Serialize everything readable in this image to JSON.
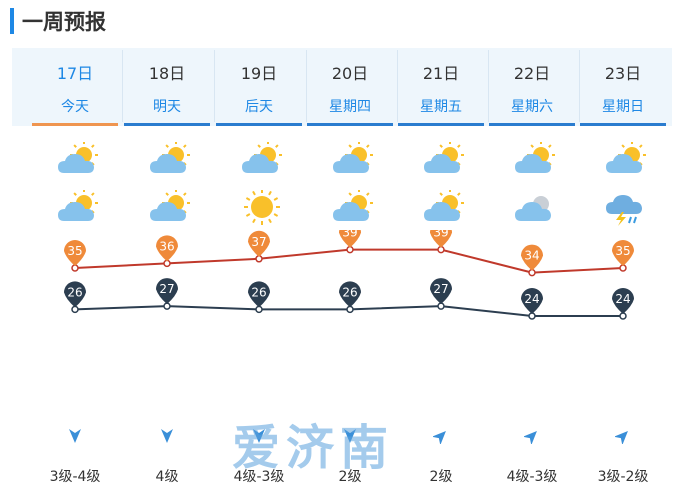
{
  "page": {
    "title": "一周预报"
  },
  "days": [
    {
      "date": "17日",
      "label": "今天",
      "icon_day": "partly-cloudy-icon",
      "icon_night": "partly-cloudy-icon",
      "high": "35",
      "low": "26",
      "wind": "3级-4级",
      "wind_dir": "down"
    },
    {
      "date": "18日",
      "label": "明天",
      "icon_day": "partly-cloudy-icon",
      "icon_night": "partly-cloudy-icon",
      "high": "36",
      "low": "27",
      "wind": "4级",
      "wind_dir": "down"
    },
    {
      "date": "19日",
      "label": "后天",
      "icon_day": "partly-cloudy-icon",
      "icon_night": "sunny-icon",
      "high": "37",
      "low": "26",
      "wind": "4级-3级",
      "wind_dir": "down"
    },
    {
      "date": "20日",
      "label": "星期四",
      "icon_day": "partly-cloudy-icon",
      "icon_night": "partly-cloudy-icon",
      "high": "39",
      "low": "26",
      "wind": "2级",
      "wind_dir": "down"
    },
    {
      "date": "21日",
      "label": "星期五",
      "icon_day": "partly-cloudy-icon",
      "icon_night": "partly-cloudy-icon",
      "high": "39",
      "low": "27",
      "wind": "2级",
      "wind_dir": "up-right"
    },
    {
      "date": "22日",
      "label": "星期六",
      "icon_day": "partly-cloudy-icon",
      "icon_night": "cloudy-icon",
      "high": "34",
      "low": "24",
      "wind": "4级-3级",
      "wind_dir": "up-right"
    },
    {
      "date": "23日",
      "label": "星期日",
      "icon_day": "partly-cloudy-icon",
      "icon_night": "thunderstorm-icon",
      "high": "35",
      "low": "24",
      "wind": "3级-2级",
      "wind_dir": "up-right"
    }
  ],
  "watermark": "爱济南",
  "colors": {
    "accent": "#1e88e5",
    "high_line": "#c0392b",
    "high_pin": "#ef8a3a",
    "low_line": "#2c3e50",
    "low_pin": "#2c3e50"
  }
}
